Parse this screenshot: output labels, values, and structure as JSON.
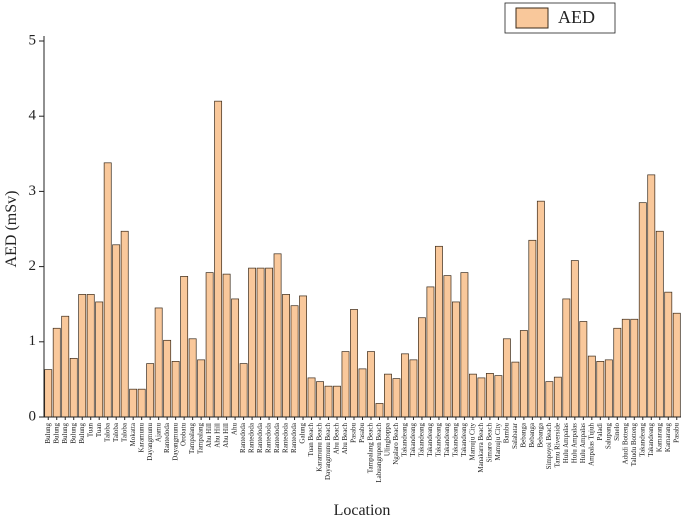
{
  "chart_data": {
    "type": "bar",
    "x_label": "Location",
    "y_label": "AED (mSv)",
    "categories": [
      "Bulung",
      "Bulung",
      "Bulung",
      "Bulung",
      "Bulung",
      "Tuan",
      "Tuan",
      "Taloba",
      "Taloba",
      "Taloba",
      "Mokatta",
      "Karamunu",
      "Dayangmunu",
      "Ajamu",
      "Rantedoda",
      "Dayangmunu",
      "Orobatu",
      "Tampalang",
      "Tampalang",
      "Ahu Hill",
      "Ahu Hill",
      "Ahu Hill",
      "Ahu",
      "Rantedoda",
      "Rantedoda",
      "Rantedoda",
      "Rantedoda",
      "Rantedoda",
      "Rantedoda",
      "Rantedoda",
      "Galung",
      "Tuan Beach",
      "Karamunu Beach",
      "Dayangmunu Beach",
      "Ahu Beach",
      "Ahu Beach",
      "Pasabu",
      "Pasabu",
      "Tampalang Beach",
      "Labuangrupen Beach",
      "Ulingboppa",
      "Ngalaro Beach",
      "Takandeang",
      "Takandeang",
      "Takandeang",
      "Takandeang",
      "Takandeang",
      "Takandeang",
      "Takandeang",
      "Takandeang",
      "Mamuju City",
      "Manakarra Beach",
      "Simaro Beach",
      "Mamuju City",
      "Bambu",
      "Salabatar",
      "Bebanga",
      "Bebanga",
      "Bebanga",
      "Simpoyoi Beach",
      "Tamu Riverside",
      "Hulu Ampalas",
      "Hulu Ampalas",
      "Hulu Ampalas",
      "Ampalas Tujuh",
      "Paladi",
      "Salupang",
      "Sinelo",
      "Adudi Botteng",
      "Taludu Botteng",
      "Takandeang",
      "Takandeang",
      "Kamarang",
      "Kamarang",
      "Pasabu"
    ],
    "series": [
      {
        "name": "AED",
        "color": "#f9c89b",
        "values": [
          0.63,
          1.18,
          1.34,
          0.78,
          1.63,
          1.63,
          1.53,
          3.38,
          2.29,
          2.47,
          0.37,
          0.37,
          0.71,
          1.45,
          1.02,
          0.74,
          1.87,
          1.04,
          0.76,
          1.92,
          4.2,
          1.9,
          1.57,
          0.71,
          1.98,
          1.98,
          1.98,
          2.17,
          1.63,
          1.48,
          1.61,
          0.52,
          0.47,
          0.41,
          0.41,
          0.87,
          1.43,
          0.64,
          0.87,
          0.18,
          0.57,
          0.51,
          0.84,
          0.76,
          1.32,
          1.73,
          2.27,
          1.88,
          1.53,
          1.92,
          0.57,
          0.52,
          0.58,
          0.55,
          1.04,
          0.73,
          1.15,
          2.35,
          2.87,
          0.47,
          0.53,
          1.57,
          2.08,
          1.27,
          0.81,
          0.74,
          0.76,
          1.18,
          1.3,
          1.3,
          2.85,
          3.22,
          2.47,
          1.66,
          1.38
        ]
      }
    ],
    "ylim": [
      0,
      5
    ],
    "yticks": [
      0,
      1,
      2,
      3,
      4,
      5
    ],
    "legend": "top-right"
  }
}
